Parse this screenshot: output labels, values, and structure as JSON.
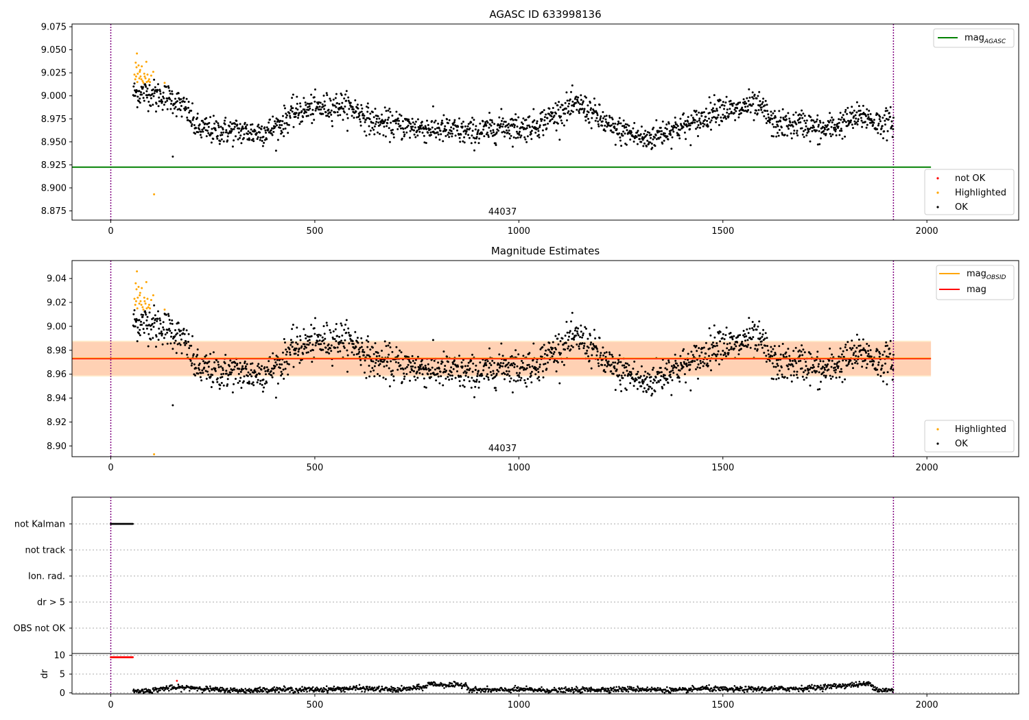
{
  "chart_data": [
    {
      "type": "scatter",
      "title": "AGASC ID 633998136",
      "xlim": [
        -95,
        2225
      ],
      "ylim": [
        8.865,
        9.078
      ],
      "xticks": [
        0,
        500,
        1000,
        1500,
        2000
      ],
      "yticks": [
        8.875,
        8.9,
        8.925,
        8.95,
        8.975,
        9.0,
        9.025,
        9.05,
        9.075
      ],
      "ytick_labels": [
        "8.875",
        "8.900",
        "8.925",
        "8.950",
        "8.975",
        "9.000",
        "9.025",
        "9.050",
        "9.075"
      ],
      "obsid_label": "44037",
      "obsid_label_x": 960,
      "vlines": [
        0,
        1918
      ],
      "hlines": [
        {
          "name": "mag_AGASC",
          "y": 8.9225,
          "x": [
            -95,
            2010
          ],
          "color": "#008000"
        }
      ],
      "series": [
        {
          "name": "not OK",
          "color": "#ff0000",
          "x": [],
          "y": []
        },
        {
          "name": "Highlighted",
          "color": "#ffa500",
          "x": [
            58,
            60,
            61,
            62,
            63,
            64,
            65,
            66,
            68,
            70,
            71,
            72,
            73,
            75,
            76,
            78,
            80,
            82,
            83,
            85,
            87,
            88,
            90,
            92,
            94,
            96,
            99,
            104,
            106,
            132
          ],
          "y": [
            9.023,
            9.018,
            9.036,
            9.021,
            9.031,
            9.046,
            9.015,
            9.024,
            9.033,
            9.019,
            9.026,
            9.028,
            9.021,
            9.018,
            9.032,
            9.016,
            9.014,
            9.024,
            9.021,
            9.019,
            9.037,
            9.015,
            9.023,
            9.016,
            9.018,
            9.015,
            9.022,
            9.026,
            8.893,
            9.014
          ]
        },
        {
          "name": "OK",
          "color": "#000000",
          "anchors": [
            [
              55,
              9.003
            ],
            [
              100,
              9.003
            ],
            [
              150,
              8.997
            ],
            [
              185,
              8.985
            ],
            [
              210,
              8.965
            ],
            [
              250,
              8.962
            ],
            [
              300,
              8.962
            ],
            [
              350,
              8.96
            ],
            [
              390,
              8.963
            ],
            [
              420,
              8.97
            ],
            [
              440,
              8.98
            ],
            [
              480,
              8.985
            ],
            [
              520,
              8.987
            ],
            [
              560,
              8.99
            ],
            [
              600,
              8.985
            ],
            [
              640,
              8.972
            ],
            [
              700,
              8.968
            ],
            [
              760,
              8.965
            ],
            [
              820,
              8.963
            ],
            [
              880,
              8.96
            ],
            [
              920,
              8.962
            ],
            [
              960,
              8.968
            ],
            [
              1000,
              8.965
            ],
            [
              1040,
              8.968
            ],
            [
              1070,
              8.975
            ],
            [
              1110,
              8.985
            ],
            [
              1150,
              8.99
            ],
            [
              1190,
              8.978
            ],
            [
              1230,
              8.963
            ],
            [
              1270,
              8.96
            ],
            [
              1310,
              8.952
            ],
            [
              1340,
              8.958
            ],
            [
              1380,
              8.965
            ],
            [
              1420,
              8.968
            ],
            [
              1450,
              8.975
            ],
            [
              1490,
              8.988
            ],
            [
              1530,
              8.982
            ],
            [
              1560,
              8.99
            ],
            [
              1600,
              8.985
            ],
            [
              1620,
              8.97
            ],
            [
              1660,
              8.968
            ],
            [
              1700,
              8.97
            ],
            [
              1740,
              8.962
            ],
            [
              1780,
              8.968
            ],
            [
              1820,
              8.975
            ],
            [
              1850,
              8.978
            ],
            [
              1880,
              8.97
            ],
            [
              1918,
              8.972
            ]
          ],
          "outliers_x": [
            152,
            111
          ],
          "outliers_y": [
            8.934,
            8.983
          ]
        }
      ],
      "legend_upper": [
        "mag_AGASC"
      ],
      "legend_lower": [
        "not OK",
        "Highlighted",
        "OK"
      ]
    },
    {
      "type": "scatter",
      "title": "Magnitude Estimates",
      "xlim": [
        -95,
        2225
      ],
      "ylim": [
        8.891,
        9.055
      ],
      "xticks": [
        0,
        500,
        1000,
        1500,
        2000
      ],
      "yticks": [
        8.9,
        8.92,
        8.94,
        8.96,
        8.98,
        9.0,
        9.02,
        9.04
      ],
      "ytick_labels": [
        "8.90",
        "8.92",
        "8.94",
        "8.96",
        "8.98",
        "9.00",
        "9.02",
        "9.04"
      ],
      "obsid_label": "44037",
      "obsid_label_x": 960,
      "vlines": [
        0,
        1918
      ],
      "mag": 8.973,
      "mag_band": [
        8.959,
        8.987
      ],
      "mag_obsid": 8.9735,
      "mag_obsid_band": [
        8.958,
        8.988
      ],
      "band_x": [
        -95,
        2010
      ],
      "legend_upper": [
        "mag_OBSID",
        "mag"
      ],
      "legend_lower": [
        "Highlighted",
        "OK"
      ]
    },
    {
      "type": "scatter",
      "title": "",
      "categories": [
        "not Kalman",
        "not track",
        "Ion. rad.",
        "dr > 5",
        "OBS not OK"
      ],
      "flag_x_range": [
        0,
        55
      ],
      "flag_category": "not Kalman",
      "vlines": [
        0,
        1918
      ]
    },
    {
      "type": "scatter",
      "title": "",
      "ylabel": "dr",
      "xlim": [
        -95,
        2225
      ],
      "ylim": [
        -0.3,
        10.5
      ],
      "xticks": [
        0,
        500,
        1000,
        1500,
        2000
      ],
      "yticks": [
        0,
        5,
        10
      ],
      "red_points": {
        "x_range": [
          0,
          55
        ],
        "y": 9.5,
        "extra_x": [
          162
        ],
        "extra_y": [
          3.2
        ]
      },
      "dr_anchors": [
        [
          55,
          0.4
        ],
        [
          100,
          0.6
        ],
        [
          130,
          1.2
        ],
        [
          200,
          1.4
        ],
        [
          260,
          0.8
        ],
        [
          330,
          0.6
        ],
        [
          400,
          0.9
        ],
        [
          450,
          0.8
        ],
        [
          520,
          0.9
        ],
        [
          600,
          1.2
        ],
        [
          660,
          1.0
        ],
        [
          700,
          0.8
        ],
        [
          770,
          1.5
        ],
        [
          780,
          2.5
        ],
        [
          800,
          2.2
        ],
        [
          850,
          2.0
        ],
        [
          870,
          2.2
        ],
        [
          880,
          0.8
        ],
        [
          950,
          0.7
        ],
        [
          1000,
          0.9
        ],
        [
          1100,
          0.6
        ],
        [
          1200,
          0.9
        ],
        [
          1300,
          1.0
        ],
        [
          1400,
          0.6
        ],
        [
          1450,
          1.2
        ],
        [
          1500,
          0.9
        ],
        [
          1600,
          1.0
        ],
        [
          1700,
          1.2
        ],
        [
          1800,
          2.0
        ],
        [
          1860,
          2.4
        ],
        [
          1880,
          0.8
        ],
        [
          1918,
          0.6
        ]
      ],
      "vlines": [
        0,
        1918
      ]
    }
  ]
}
